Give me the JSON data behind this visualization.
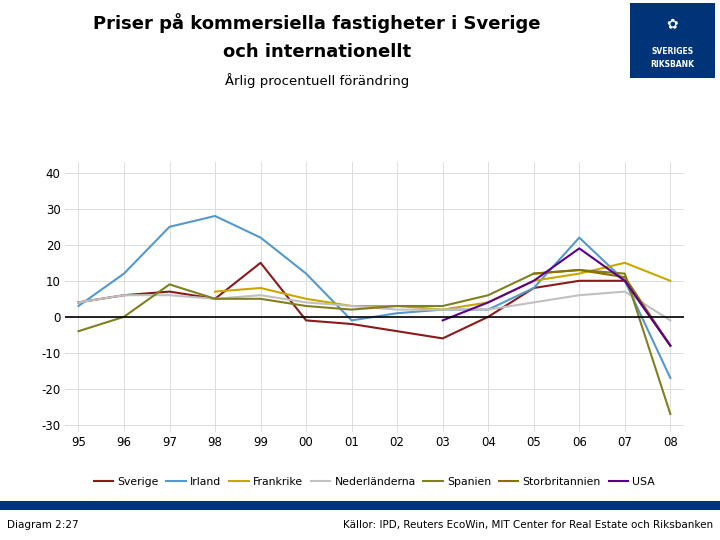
{
  "title_line1": "Priser på kommersiella fastigheter i Sverige",
  "title_line2": "och internationellt",
  "subtitle": "Årlig procentuell förändring",
  "xlabel_labels": [
    "95",
    "96",
    "97",
    "98",
    "99",
    "00",
    "01",
    "02",
    "03",
    "04",
    "05",
    "06",
    "07",
    "08"
  ],
  "ylim": [
    -32,
    43
  ],
  "yticks": [
    -30,
    -20,
    -10,
    0,
    10,
    20,
    30,
    40
  ],
  "series_names": [
    "Sverige",
    "Irland",
    "Frankrike",
    "Nederländerna",
    "Spanien",
    "Storbritannien",
    "USA"
  ],
  "series_colors": [
    "#8B1A1A",
    "#5599CC",
    "#C8A800",
    "#C0C0C0",
    "#808020",
    "#8B7000",
    "#5B008B"
  ],
  "series_data": [
    [
      4,
      6,
      7,
      5,
      15,
      -1,
      -2,
      -4,
      -6,
      0,
      8,
      10,
      10,
      -8
    ],
    [
      3,
      12,
      25,
      28,
      22,
      12,
      -1,
      1,
      2,
      2,
      8,
      22,
      10,
      -17
    ],
    [
      null,
      null,
      null,
      7,
      8,
      5,
      3,
      3,
      2,
      4,
      10,
      12,
      15,
      10
    ],
    [
      4,
      6,
      6,
      5,
      6,
      4,
      3,
      2,
      2,
      2,
      4,
      6,
      7,
      -1
    ],
    [
      -4,
      0,
      9,
      5,
      5,
      3,
      2,
      3,
      3,
      6,
      12,
      13,
      12,
      -27
    ],
    [
      null,
      null,
      null,
      null,
      null,
      null,
      null,
      null,
      null,
      null,
      12,
      13,
      11,
      -8
    ],
    [
      null,
      null,
      null,
      null,
      null,
      null,
      null,
      null,
      -1,
      4,
      10,
      19,
      10,
      -8
    ]
  ],
  "footer_left": "Diagram 2:27",
  "footer_right": "Källor: IPD, Reuters EcoWin, MIT Center for Real Estate och Riksbanken",
  "background_color": "#FFFFFF",
  "logo_box_color": "#003478",
  "grid_color": "#DDDDDD"
}
